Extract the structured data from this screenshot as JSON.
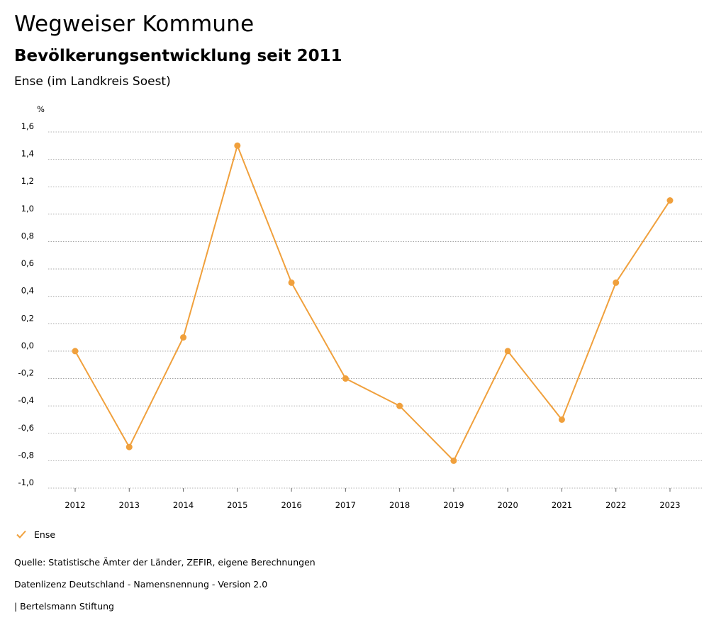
{
  "header": {
    "title": "Wegweiser Kommune",
    "subtitle": "Bevölkerungsentwicklung seit 2011",
    "region": "Ense (im Landkreis Soest)"
  },
  "chart_data": {
    "type": "line",
    "title": "Bevölkerungsentwicklung seit 2011",
    "ylabel": "%",
    "xlabel": "",
    "categories": [
      "2012",
      "2013",
      "2014",
      "2015",
      "2016",
      "2017",
      "2018",
      "2019",
      "2020",
      "2021",
      "2022",
      "2023"
    ],
    "series": [
      {
        "name": "Ense",
        "color": "#f0a03c",
        "values": [
          0.0,
          -0.7,
          0.1,
          1.5,
          0.5,
          -0.2,
          -0.4,
          -0.8,
          0.0,
          -0.5,
          0.5,
          1.1
        ]
      }
    ],
    "ylim": [
      -1.0,
      1.6
    ],
    "yticks": [
      "1,6",
      "1,4",
      "1,2",
      "1,0",
      "0,8",
      "0,6",
      "0,4",
      "0,2",
      "0,0",
      "-0,2",
      "-0,4",
      "-0,6",
      "-0,8",
      "-1,0"
    ],
    "ytick_values": [
      1.6,
      1.4,
      1.2,
      1.0,
      0.8,
      0.6,
      0.4,
      0.2,
      0.0,
      -0.2,
      -0.4,
      -0.6,
      -0.8,
      -1.0
    ],
    "grid": true,
    "legend": "bottom-left"
  },
  "legend": {
    "label": "Ense"
  },
  "footer": {
    "source": "Quelle: Statistische Ämter der Länder, ZEFIR, eigene Berechnungen",
    "license": "Datenlizenz Deutschland - Namensnennung - Version 2.0",
    "publisher": "| Bertelsmann Stiftung"
  }
}
